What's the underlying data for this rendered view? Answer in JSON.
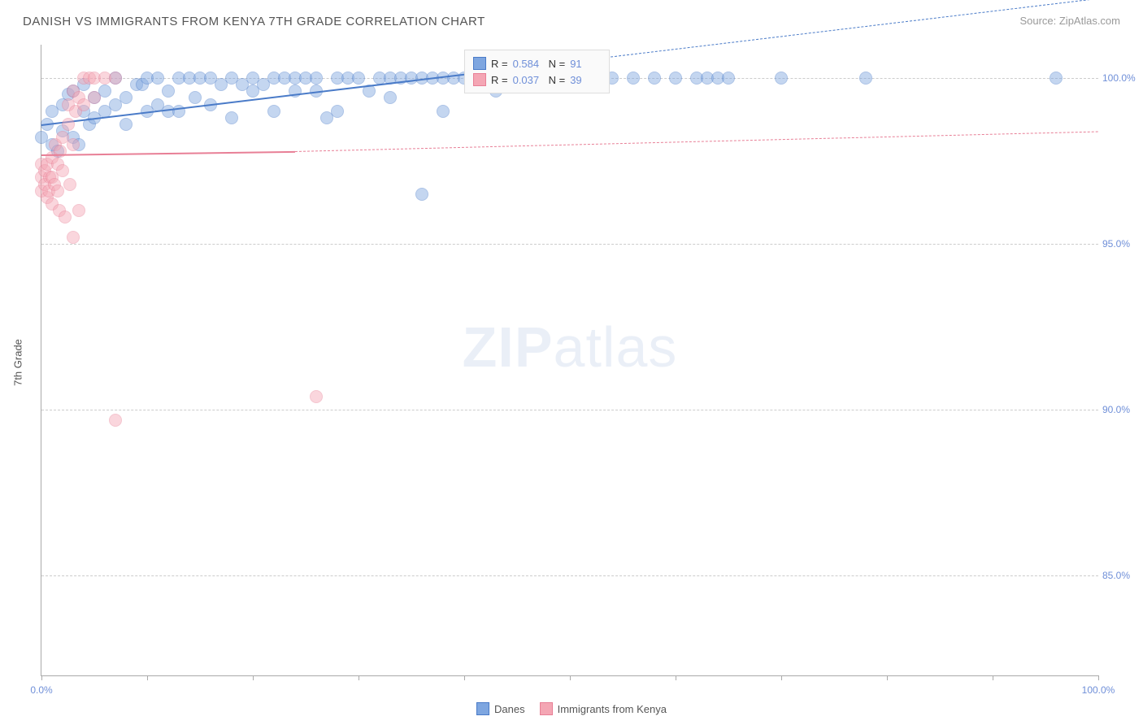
{
  "title": "DANISH VS IMMIGRANTS FROM KENYA 7TH GRADE CORRELATION CHART",
  "source_prefix": "Source: ",
  "source": "ZipAtlas.com",
  "y_axis_title": "7th Grade",
  "watermark_a": "ZIP",
  "watermark_b": "atlas",
  "chart": {
    "type": "scatter",
    "xlim": [
      0,
      100
    ],
    "ylim": [
      82,
      101
    ],
    "xtick_positions": [
      0,
      10,
      20,
      30,
      40,
      50,
      60,
      70,
      80,
      90,
      100
    ],
    "xtick_labels": {
      "0": "0.0%",
      "100": "100.0%"
    },
    "ytick_positions": [
      85,
      90,
      95,
      100
    ],
    "ytick_labels": {
      "85": "85.0%",
      "90": "90.0%",
      "95": "95.0%",
      "100": "100.0%"
    },
    "background_color": "#ffffff",
    "grid_color": "#cccccc",
    "marker_radius": 8,
    "marker_opacity": 0.45,
    "series": [
      {
        "name": "Danes",
        "color_fill": "#7ea6e0",
        "color_stroke": "#4a7bc8",
        "R_label": "R =",
        "R": "0.584",
        "N_label": "N =",
        "N": "91",
        "trend": {
          "x1": 0,
          "y1": 98.6,
          "x2": 42,
          "y2": 100.2,
          "width": 2.5,
          "solid_to": 42,
          "dash_to": 100
        },
        "points": [
          [
            0,
            98.2
          ],
          [
            0.5,
            98.6
          ],
          [
            1,
            99.0
          ],
          [
            1,
            98.0
          ],
          [
            1.5,
            97.8
          ],
          [
            2,
            99.2
          ],
          [
            2,
            98.4
          ],
          [
            2.5,
            99.5
          ],
          [
            3,
            98.2
          ],
          [
            3,
            99.6
          ],
          [
            3.5,
            98.0
          ],
          [
            4,
            99.0
          ],
          [
            4,
            99.8
          ],
          [
            4.5,
            98.6
          ],
          [
            5,
            99.4
          ],
          [
            5,
            98.8
          ],
          [
            6,
            99.0
          ],
          [
            6,
            99.6
          ],
          [
            7,
            99.2
          ],
          [
            7,
            100.0
          ],
          [
            8,
            98.6
          ],
          [
            8,
            99.4
          ],
          [
            9,
            99.8
          ],
          [
            9.5,
            99.8
          ],
          [
            10,
            100.0
          ],
          [
            10,
            99.0
          ],
          [
            11,
            99.2
          ],
          [
            11,
            100.0
          ],
          [
            12,
            99.0
          ],
          [
            12,
            99.6
          ],
          [
            13,
            99.0
          ],
          [
            13,
            100.0
          ],
          [
            14,
            100.0
          ],
          [
            14.5,
            99.4
          ],
          [
            15,
            100.0
          ],
          [
            16,
            99.2
          ],
          [
            16,
            100.0
          ],
          [
            17,
            99.8
          ],
          [
            18,
            100.0
          ],
          [
            18,
            98.8
          ],
          [
            19,
            99.8
          ],
          [
            20,
            100.0
          ],
          [
            20,
            99.6
          ],
          [
            21,
            99.8
          ],
          [
            22,
            100.0
          ],
          [
            22,
            99.0
          ],
          [
            23,
            100.0
          ],
          [
            24,
            99.6
          ],
          [
            24,
            100.0
          ],
          [
            25,
            100.0
          ],
          [
            26,
            100.0
          ],
          [
            26,
            99.6
          ],
          [
            27,
            98.8
          ],
          [
            28,
            100.0
          ],
          [
            28,
            99.0
          ],
          [
            29,
            100.0
          ],
          [
            30,
            100.0
          ],
          [
            31,
            99.6
          ],
          [
            32,
            100.0
          ],
          [
            33,
            100.0
          ],
          [
            33,
            99.4
          ],
          [
            34,
            100.0
          ],
          [
            35,
            100.0
          ],
          [
            36,
            100.0
          ],
          [
            37,
            100.0
          ],
          [
            38,
            100.0
          ],
          [
            38,
            99.0
          ],
          [
            39,
            100.0
          ],
          [
            40,
            100.0
          ],
          [
            41,
            100.0
          ],
          [
            42,
            100.0
          ],
          [
            43,
            99.6
          ],
          [
            44,
            100.0
          ],
          [
            36,
            96.5
          ],
          [
            46,
            100.0
          ],
          [
            48,
            100.0
          ],
          [
            49,
            100.0
          ],
          [
            50,
            100.0
          ],
          [
            51,
            100.0
          ],
          [
            52,
            100.0
          ],
          [
            54,
            100.0
          ],
          [
            56,
            100.0
          ],
          [
            58,
            100.0
          ],
          [
            60,
            100.0
          ],
          [
            62,
            100.0
          ],
          [
            63,
            100.0
          ],
          [
            64,
            100.0
          ],
          [
            65,
            100.0
          ],
          [
            70,
            100.0
          ],
          [
            78,
            100.0
          ],
          [
            96,
            100.0
          ]
        ]
      },
      {
        "name": "Immigrants from Kenya",
        "color_fill": "#f4a6b4",
        "color_stroke": "#e87f96",
        "R_label": "R =",
        "R": "0.037",
        "N_label": "N =",
        "N": "39",
        "trend": {
          "x1": 0,
          "y1": 97.7,
          "x2": 24,
          "y2": 97.8,
          "width": 2,
          "solid_to": 24,
          "dash_to": 100,
          "dash_y2": 98.4
        },
        "points": [
          [
            0,
            97.4
          ],
          [
            0,
            97.0
          ],
          [
            0,
            96.6
          ],
          [
            0.3,
            97.2
          ],
          [
            0.3,
            96.8
          ],
          [
            0.5,
            97.4
          ],
          [
            0.5,
            96.4
          ],
          [
            0.7,
            96.6
          ],
          [
            0.8,
            97.0
          ],
          [
            1,
            97.6
          ],
          [
            1,
            97.0
          ],
          [
            1,
            96.2
          ],
          [
            1.2,
            96.8
          ],
          [
            1.3,
            98.0
          ],
          [
            1.5,
            97.4
          ],
          [
            1.5,
            96.6
          ],
          [
            1.7,
            96.0
          ],
          [
            1.8,
            97.8
          ],
          [
            2,
            98.2
          ],
          [
            2,
            97.2
          ],
          [
            2.2,
            95.8
          ],
          [
            2.5,
            99.2
          ],
          [
            2.5,
            98.6
          ],
          [
            2.7,
            96.8
          ],
          [
            3,
            99.6
          ],
          [
            3,
            98.0
          ],
          [
            3.2,
            99.0
          ],
          [
            3.5,
            99.4
          ],
          [
            3.5,
            96.0
          ],
          [
            4,
            100.0
          ],
          [
            4,
            99.2
          ],
          [
            4.5,
            100.0
          ],
          [
            5,
            100.0
          ],
          [
            5,
            99.4
          ],
          [
            6,
            100.0
          ],
          [
            7,
            100.0
          ],
          [
            7,
            89.7
          ],
          [
            26,
            90.4
          ],
          [
            3,
            95.2
          ]
        ]
      }
    ]
  },
  "legend_bottom": [
    {
      "label": "Danes",
      "fill": "#7ea6e0",
      "stroke": "#4a7bc8"
    },
    {
      "label": "Immigrants from Kenya",
      "fill": "#f4a6b4",
      "stroke": "#e87f96"
    }
  ]
}
